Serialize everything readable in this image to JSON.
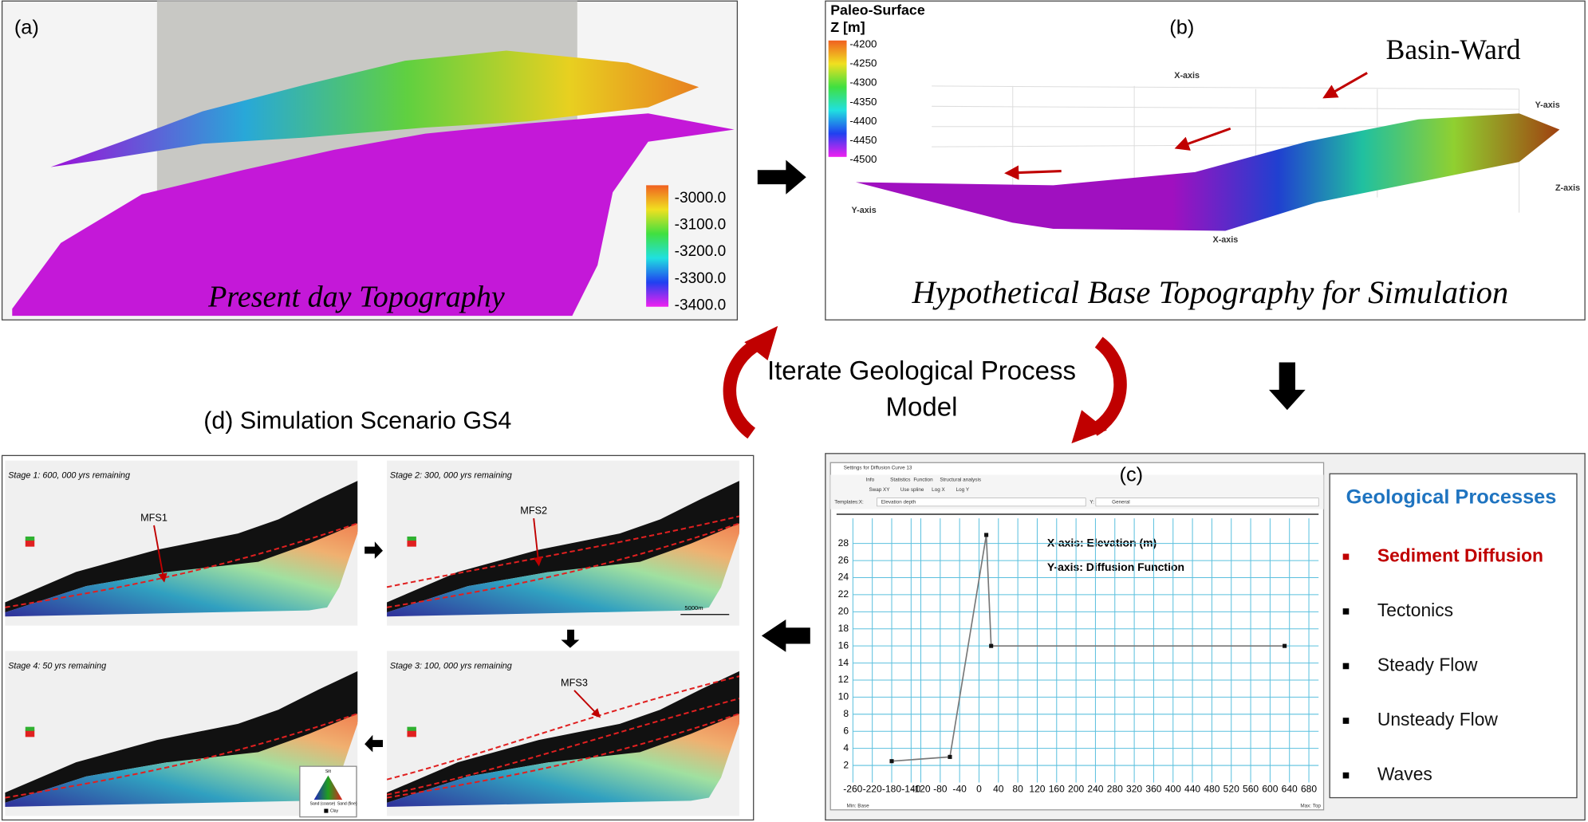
{
  "panel_a": {
    "label": "(a)",
    "caption": "Present day Topography",
    "colorbar_labels": [
      "-3000.0",
      "-3100.0",
      "-3200.0",
      "-3300.0",
      "-3400.0"
    ]
  },
  "panel_b": {
    "label": "(b)",
    "colorbar_title": "Paleo-Surface",
    "colorbar_unit": "Z [m]",
    "colorbar_labels": [
      "-4200",
      "-4250",
      "-4300",
      "-4350",
      "-4400",
      "-4450",
      "-4500"
    ],
    "annotation": "Basin-Ward",
    "axis_labels": [
      "X-axis",
      "Y-axis",
      "Z-axis",
      "Y-axis",
      "X-axis"
    ],
    "caption": "Hypothetical Base Topography for Simulation"
  },
  "cycle_label": [
    "Iterate Geological Process",
    "Model"
  ],
  "panel_c": {
    "label": "(c)",
    "window_title": "Settings for Diffusion Curve 13",
    "tabs": [
      "Info",
      "Statistics",
      "Function",
      "Structural analysis"
    ],
    "options": [
      "Swap XY",
      "Use spline",
      "Log X",
      "Log Y"
    ],
    "templates_label": "Templates:",
    "x_label": "X:",
    "x_template": "Elevation depth",
    "y_label": "Y:",
    "y_template": "General",
    "annotations": [
      "X-axis: Elevation (m)",
      "Y-axis: Diffusion Function"
    ],
    "footer": [
      "Min: Base",
      "Max: Top"
    ]
  },
  "processes": {
    "title": "Geological Processes",
    "items": [
      "Sediment Diffusion",
      "Tectonics",
      "Steady Flow",
      "Unsteady Flow",
      "Waves"
    ]
  },
  "panel_d": {
    "title": "(d) Simulation Scenario GS4",
    "stages": [
      {
        "label": "Stage 1: 600, 000 yrs remaining",
        "marker": "MFS1"
      },
      {
        "label": "Stage 2: 300, 000 yrs remaining",
        "marker": "MFS2"
      },
      {
        "label": "Stage 3: 100, 000 yrs remaining",
        "marker": "MFS3"
      },
      {
        "label": "Stage 4: 50 yrs remaining"
      }
    ],
    "scale_bar": "5000m",
    "legend": [
      "Silt",
      "Sand (coarse)",
      "Sand (fine)",
      "Clay"
    ]
  },
  "chart_data": {
    "type": "line",
    "x": [
      -180,
      -60,
      15,
      25,
      630
    ],
    "values": [
      2.5,
      3,
      29,
      16,
      16
    ],
    "color": "#777777",
    "xlim": [
      -300,
      700
    ],
    "ylim": [
      0,
      30
    ],
    "xticks": [
      -260,
      -220,
      -180,
      -140,
      -120,
      -80,
      -40,
      0,
      40,
      80,
      120,
      160,
      200,
      240,
      280,
      320,
      360,
      400,
      440,
      480,
      520,
      560,
      600,
      640,
      680
    ],
    "yticks": [
      2,
      4,
      6,
      8,
      10,
      12,
      14,
      16,
      18,
      20,
      22,
      24,
      26,
      28
    ],
    "grid": true
  }
}
